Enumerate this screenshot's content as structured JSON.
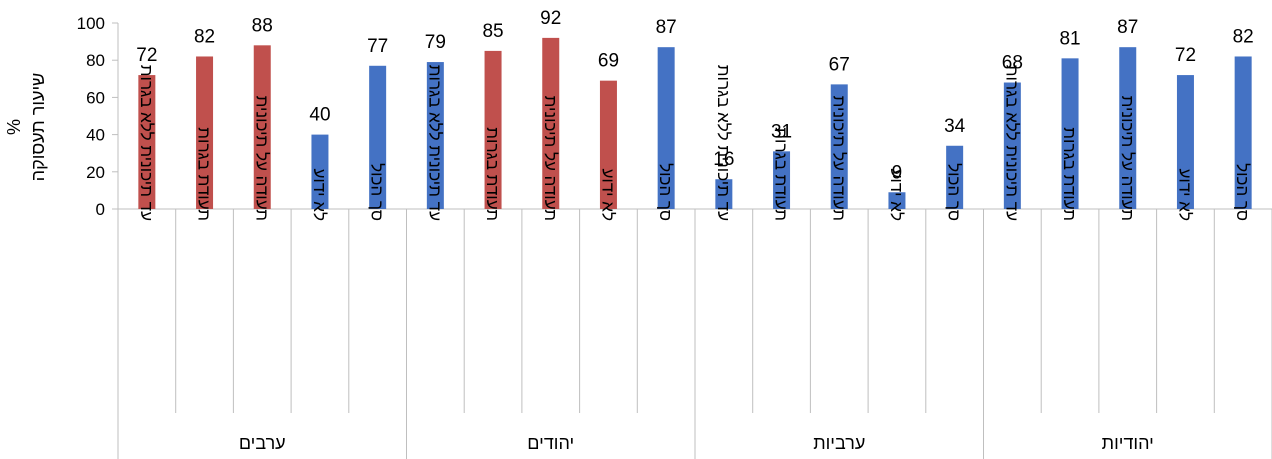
{
  "chart_data": {
    "type": "bar",
    "ylabel": "שיעור תעסוקה",
    "y_unit": "%",
    "ylim": [
      0,
      100
    ],
    "yticks": [
      0,
      20,
      40,
      60,
      80,
      100
    ],
    "grid": false,
    "legend": "none",
    "groups": [
      {
        "name": "ערבים",
        "categories": [
          "עד תיכונית ללא בגרות",
          "תעודת בגרות",
          "תעודה על תיכונית",
          "לא ידוע",
          "סך הכול"
        ],
        "values": [
          72,
          82,
          88,
          40,
          77
        ],
        "colors": [
          "#c0504d",
          "#c0504d",
          "#c0504d",
          "#4472c4",
          "#4472c4"
        ]
      },
      {
        "name": "יהודים",
        "categories": [
          "עד תיכונית ללא בגרות",
          "תעודת בגרות",
          "תעודה על תיכונית",
          "לא ידוע",
          "סך הכול"
        ],
        "values": [
          79,
          85,
          92,
          69,
          87
        ],
        "colors": [
          "#4472c4",
          "#c0504d",
          "#c0504d",
          "#c0504d",
          "#4472c4"
        ]
      },
      {
        "name": "ערביות",
        "categories": [
          "עד תיכונית ללא בגרות",
          "תעודת בגרות",
          "תעודה על תיכונית",
          "לא ידוע",
          "סך הכול"
        ],
        "values": [
          16,
          31,
          67,
          9,
          34
        ],
        "colors": [
          "#4472c4",
          "#4472c4",
          "#4472c4",
          "#4472c4",
          "#4472c4"
        ]
      },
      {
        "name": "יהודיות",
        "categories": [
          "עד תיכונית ללא בגרות",
          "תעודת בגרות",
          "תעודה על תיכונית",
          "לא ידוע",
          "סך הכול"
        ],
        "values": [
          68,
          81,
          87,
          72,
          82
        ],
        "colors": [
          "#4472c4",
          "#4472c4",
          "#4472c4",
          "#4472c4",
          "#4472c4"
        ]
      }
    ]
  }
}
